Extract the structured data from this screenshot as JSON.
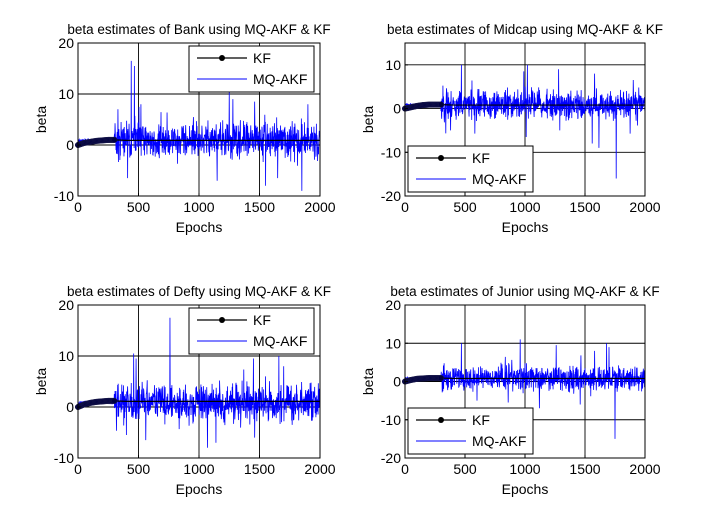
{
  "chart_data": [
    {
      "type": "line",
      "title": "beta estimates of Bank using MQ-AKF & KF",
      "xlabel": "Epochs",
      "ylabel": "beta",
      "xlim": [
        0,
        2000
      ],
      "ylim": [
        -10,
        20
      ],
      "xticks": [
        0,
        500,
        1000,
        1500,
        2000
      ],
      "yticks": [
        -10,
        0,
        10,
        20
      ],
      "grid": true,
      "legend": {
        "position": "top-right",
        "entries": [
          "KF",
          "MQ-AKF"
        ]
      },
      "series": [
        {
          "name": "KF",
          "color": "#000000",
          "marker": "dot",
          "x": [
            0,
            50,
            100,
            150,
            200,
            250,
            300,
            400,
            600,
            800,
            1000,
            1200,
            1400,
            1600,
            1800,
            2000
          ],
          "values": [
            0,
            0.4,
            0.6,
            0.8,
            0.9,
            1.0,
            1.0,
            0.9,
            0.9,
            0.9,
            0.9,
            0.9,
            0.9,
            0.9,
            0.9,
            0.9
          ]
        },
        {
          "name": "MQ-AKF",
          "color": "#0000ff",
          "noise_start": 300,
          "noise_amplitude": 2.8,
          "seed": 11,
          "spikes": [
            {
              "x": 440,
              "value": 16.5
            },
            {
              "x": 465,
              "value": 15.5
            },
            {
              "x": 330,
              "value": 7
            },
            {
              "x": 520,
              "value": 8
            },
            {
              "x": 1250,
              "value": 10.5
            },
            {
              "x": 1280,
              "value": 9
            },
            {
              "x": 1460,
              "value": 8.5
            },
            {
              "x": 1850,
              "value": 7.5
            },
            {
              "x": 1900,
              "value": 8
            },
            {
              "x": 1150,
              "value": -7
            },
            {
              "x": 1550,
              "value": -8
            },
            {
              "x": 410,
              "value": -6.5
            },
            {
              "x": 1650,
              "value": -6.5
            },
            {
              "x": 1850,
              "value": -9
            }
          ]
        }
      ]
    },
    {
      "type": "line",
      "title": "beta estimates of Midcap using MQ-AKF & KF",
      "xlabel": "Epochs",
      "ylabel": "beta",
      "xlim": [
        0,
        2000
      ],
      "ylim": [
        -20,
        15
      ],
      "xticks": [
        0,
        500,
        1000,
        1500,
        2000
      ],
      "yticks": [
        -20,
        -10,
        0,
        10
      ],
      "grid": true,
      "legend": {
        "position": "bottom-left",
        "entries": [
          "KF",
          "MQ-AKF"
        ]
      },
      "series": [
        {
          "name": "KF",
          "color": "#000000",
          "marker": "dot",
          "x": [
            0,
            50,
            100,
            150,
            200,
            250,
            300,
            400,
            600,
            800,
            1000,
            1200,
            1400,
            1600,
            1800,
            2000
          ],
          "values": [
            0,
            0.3,
            0.6,
            0.8,
            0.9,
            0.9,
            0.9,
            0.8,
            0.8,
            0.8,
            0.8,
            0.8,
            0.8,
            0.8,
            0.8,
            0.8
          ]
        },
        {
          "name": "MQ-AKF",
          "color": "#0000ff",
          "noise_start": 300,
          "noise_amplitude": 2.6,
          "seed": 23,
          "spikes": [
            {
              "x": 470,
              "value": 10
            },
            {
              "x": 990,
              "value": 8.5
            },
            {
              "x": 1020,
              "value": 10
            },
            {
              "x": 1280,
              "value": 9
            },
            {
              "x": 1580,
              "value": 8
            },
            {
              "x": 1010,
              "value": -6.5
            },
            {
              "x": 1290,
              "value": -5
            },
            {
              "x": 1560,
              "value": -8
            },
            {
              "x": 1615,
              "value": -9
            },
            {
              "x": 1760,
              "value": -16
            },
            {
              "x": 380,
              "value": -5
            }
          ]
        }
      ]
    },
    {
      "type": "line",
      "title": "beta estimates of Defty using MQ-AKF & KF",
      "xlabel": "Epochs",
      "ylabel": "beta",
      "xlim": [
        0,
        2000
      ],
      "ylim": [
        -10,
        20
      ],
      "xticks": [
        0,
        500,
        1000,
        1500,
        2000
      ],
      "yticks": [
        -10,
        0,
        10,
        20
      ],
      "grid": true,
      "legend": {
        "position": "top-right",
        "entries": [
          "KF",
          "MQ-AKF"
        ]
      },
      "series": [
        {
          "name": "KF",
          "color": "#000000",
          "marker": "dot",
          "x": [
            0,
            50,
            100,
            150,
            200,
            250,
            300,
            400,
            600,
            800,
            1000,
            1200,
            1400,
            1600,
            1800,
            2000
          ],
          "values": [
            0,
            0.5,
            0.8,
            1.0,
            1.1,
            1.2,
            1.2,
            1.1,
            1.1,
            1.1,
            1.1,
            1.1,
            1.1,
            1.1,
            1.1,
            1.1
          ]
        },
        {
          "name": "MQ-AKF",
          "color": "#0000ff",
          "noise_start": 300,
          "noise_amplitude": 2.8,
          "seed": 37,
          "spikes": [
            {
              "x": 760,
              "value": 17.5
            },
            {
              "x": 460,
              "value": 10.5
            },
            {
              "x": 480,
              "value": 9.5
            },
            {
              "x": 1450,
              "value": 9.5
            },
            {
              "x": 1660,
              "value": 10
            },
            {
              "x": 1700,
              "value": 8
            },
            {
              "x": 1550,
              "value": 6
            },
            {
              "x": 1070,
              "value": -8
            },
            {
              "x": 1140,
              "value": -7
            },
            {
              "x": 560,
              "value": -6.5
            },
            {
              "x": 1460,
              "value": -6
            },
            {
              "x": 400,
              "value": -5.5
            }
          ]
        }
      ]
    },
    {
      "type": "line",
      "title": "beta estimates of Junior using MQ-AKF & KF",
      "xlabel": "Epochs",
      "ylabel": "beta",
      "xlim": [
        0,
        2000
      ],
      "ylim": [
        -20,
        20
      ],
      "xticks": [
        0,
        500,
        1000,
        1500,
        2000
      ],
      "yticks": [
        -20,
        -10,
        0,
        10,
        20
      ],
      "grid": true,
      "legend": {
        "position": "bottom-left",
        "entries": [
          "KF",
          "MQ-AKF"
        ]
      },
      "series": [
        {
          "name": "KF",
          "color": "#000000",
          "marker": "dot",
          "x": [
            0,
            50,
            100,
            150,
            200,
            250,
            300,
            400,
            600,
            800,
            1000,
            1200,
            1400,
            1600,
            1800,
            2000
          ],
          "values": [
            0,
            0.4,
            0.7,
            0.8,
            0.9,
            0.9,
            0.9,
            0.8,
            0.8,
            0.8,
            0.8,
            0.8,
            0.8,
            0.8,
            0.8,
            0.8
          ]
        },
        {
          "name": "MQ-AKF",
          "color": "#0000ff",
          "noise_start": 300,
          "noise_amplitude": 2.6,
          "seed": 53,
          "spikes": [
            {
              "x": 470,
              "value": 10
            },
            {
              "x": 960,
              "value": 11
            },
            {
              "x": 1260,
              "value": 9.5
            },
            {
              "x": 1680,
              "value": 10
            },
            {
              "x": 1700,
              "value": 9
            },
            {
              "x": 1580,
              "value": 8
            },
            {
              "x": 1750,
              "value": -15
            },
            {
              "x": 1120,
              "value": -7
            },
            {
              "x": 860,
              "value": -5.5
            },
            {
              "x": 1460,
              "value": -6
            },
            {
              "x": 600,
              "value": -5
            }
          ]
        }
      ]
    }
  ]
}
